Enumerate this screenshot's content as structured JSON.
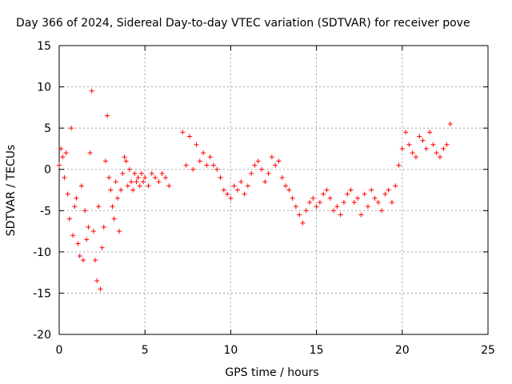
{
  "chart_data": {
    "type": "scatter",
    "title": "Day 366 of 2024, Sidereal Day-to-day VTEC variation (SDTVAR) for receiver pove",
    "xlabel": "GPS time / hours",
    "ylabel": "SDTVAR / TECUs",
    "xlim": [
      0,
      25
    ],
    "ylim": [
      -20,
      15
    ],
    "xticks": [
      0,
      5,
      10,
      15,
      20,
      25
    ],
    "yticks": [
      -20,
      -15,
      -10,
      -5,
      0,
      5,
      10,
      15
    ],
    "xtick_labels": [
      "0",
      "5",
      "10",
      "15",
      "20",
      "25"
    ],
    "ytick_labels": [
      "-20",
      "-15",
      "-10",
      "-5",
      "0",
      "5",
      "10",
      "15"
    ],
    "grid": true,
    "marker": "+",
    "color": "#ff0000",
    "series": [
      {
        "name": "pove",
        "x": [
          0.0,
          0.1,
          0.2,
          0.3,
          0.4,
          0.5,
          0.6,
          0.7,
          0.8,
          0.9,
          1.0,
          1.1,
          1.2,
          1.3,
          1.4,
          1.5,
          1.6,
          1.7,
          1.8,
          1.9,
          2.0,
          2.1,
          2.2,
          2.3,
          2.4,
          2.5,
          2.6,
          2.7,
          2.8,
          2.9,
          3.0,
          3.1,
          3.2,
          3.3,
          3.4,
          3.5,
          3.6,
          3.7,
          3.8,
          3.9,
          4.0,
          4.1,
          4.2,
          4.3,
          4.4,
          4.5,
          4.6,
          4.7,
          4.8,
          4.9,
          5.0,
          5.2,
          5.4,
          5.6,
          5.8,
          6.0,
          6.2,
          6.4,
          7.2,
          7.4,
          7.6,
          7.8,
          8.0,
          8.2,
          8.4,
          8.6,
          8.8,
          9.0,
          9.2,
          9.4,
          9.6,
          9.8,
          10.0,
          10.2,
          10.4,
          10.6,
          10.8,
          11.0,
          11.2,
          11.4,
          11.6,
          11.8,
          12.0,
          12.2,
          12.4,
          12.6,
          12.8,
          13.0,
          13.2,
          13.4,
          13.6,
          13.8,
          14.0,
          14.2,
          14.4,
          14.6,
          14.8,
          15.0,
          15.2,
          15.4,
          15.6,
          15.8,
          16.0,
          16.2,
          16.4,
          16.6,
          16.8,
          17.0,
          17.2,
          17.4,
          17.6,
          17.8,
          18.0,
          18.2,
          18.4,
          18.6,
          18.8,
          19.0,
          19.2,
          19.4,
          19.6,
          19.8,
          20.0,
          20.2,
          20.4,
          20.6,
          20.8,
          21.0,
          21.2,
          21.4,
          21.6,
          21.8,
          22.0,
          22.2,
          22.4,
          22.6,
          22.8
        ],
        "y": [
          0.5,
          2.5,
          1.5,
          -1.0,
          2.0,
          -3.0,
          -6.0,
          5.0,
          -8.0,
          -4.5,
          -3.5,
          -9.0,
          -10.5,
          -2.0,
          -11.0,
          -5.0,
          -8.5,
          -7.0,
          2.0,
          9.5,
          -7.5,
          -11.0,
          -13.5,
          -4.5,
          -14.5,
          -9.5,
          -7.0,
          1.0,
          6.5,
          -1.0,
          -2.5,
          -4.5,
          -6.0,
          -1.5,
          -3.5,
          -7.5,
          -2.5,
          -0.5,
          1.5,
          1.0,
          -2.0,
          0.0,
          -1.5,
          -2.5,
          -0.5,
          -1.5,
          -1.0,
          -2.0,
          -0.5,
          -1.5,
          -1.0,
          -2.0,
          -0.5,
          -1.0,
          -1.5,
          -0.5,
          -1.0,
          -2.0,
          4.5,
          0.5,
          4.0,
          0.0,
          3.0,
          1.0,
          2.0,
          0.5,
          1.5,
          0.5,
          0.0,
          -1.0,
          -2.5,
          -3.0,
          -3.5,
          -2.0,
          -2.5,
          -1.5,
          -3.0,
          -2.0,
          -0.5,
          0.5,
          1.0,
          0.0,
          -1.5,
          -0.5,
          1.5,
          0.5,
          1.0,
          -1.0,
          -2.0,
          -2.5,
          -3.5,
          -4.5,
          -5.5,
          -6.5,
          -5.0,
          -4.0,
          -3.5,
          -4.5,
          -4.0,
          -3.0,
          -2.5,
          -3.5,
          -5.0,
          -4.5,
          -5.5,
          -4.0,
          -3.0,
          -2.5,
          -4.0,
          -3.5,
          -5.5,
          -3.0,
          -4.5,
          -2.5,
          -3.5,
          -4.0,
          -5.0,
          -3.0,
          -2.5,
          -4.0,
          -2.0,
          0.5,
          2.5,
          4.5,
          3.0,
          2.0,
          1.5,
          4.0,
          3.5,
          2.5,
          4.5,
          3.0,
          2.0,
          1.5,
          2.5,
          3.0,
          5.5
        ]
      }
    ]
  }
}
